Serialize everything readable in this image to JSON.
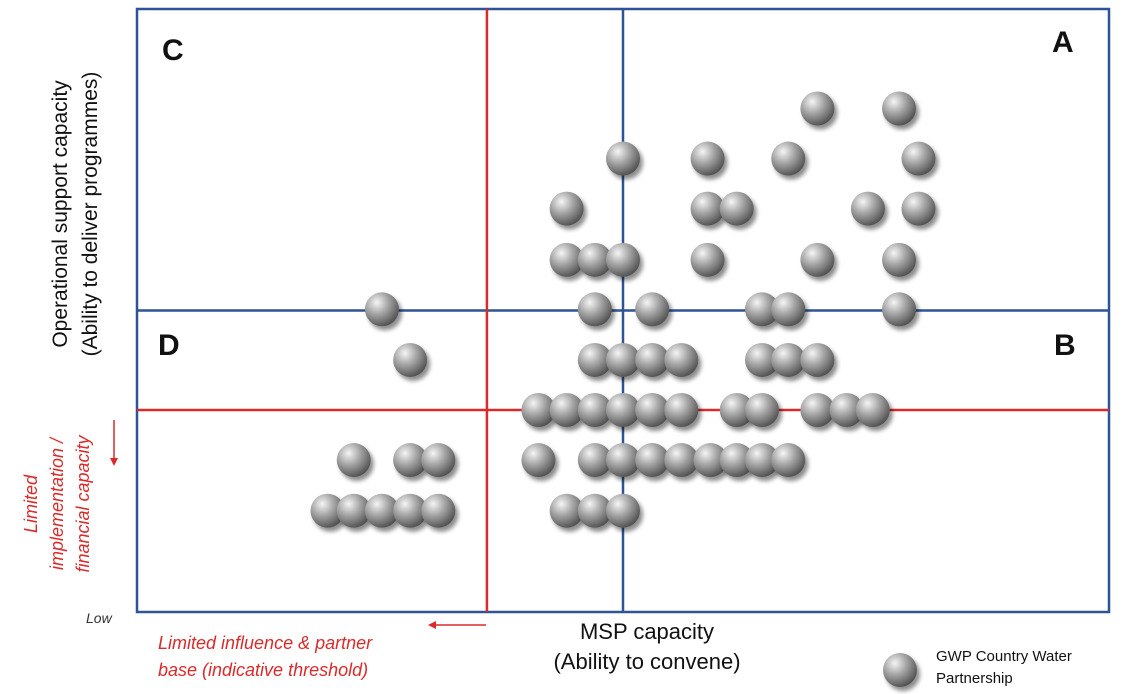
{
  "colors": {
    "frame": "#2f5496",
    "threshold": "#d92b2b",
    "bubble_light": "#f2f2f2",
    "bubble_dark": "#555555"
  },
  "quadrants": {
    "A": "A",
    "B": "B",
    "C": "C",
    "D": "D"
  },
  "axes": {
    "x_title_line1": "MSP capacity",
    "x_title_line2": "(Ability to convene)",
    "y_title_line1": "Operational support capacity",
    "y_title_line2": "(Ability to deliver programmes)",
    "x_threshold_line1": "Limited influence & partner",
    "x_threshold_line2": "base (indicative threshold)",
    "y_threshold_line1": "Limited",
    "y_threshold_line2": "implementation /",
    "y_threshold_line3": "financial capacity",
    "low_label": "Low"
  },
  "legend": {
    "icon": "grey-sphere",
    "line1": "GWP Country Water",
    "line2": "Partnership"
  },
  "chart_data": {
    "type": "scatter",
    "title": "",
    "xlabel": "MSP capacity (Ability to convene)",
    "ylabel": "Operational support capacity (Ability to deliver programmes)",
    "xlim": [
      0,
      1
    ],
    "ylim": [
      0,
      1
    ],
    "reference_lines": {
      "x_mid": 0.5,
      "y_mid": 0.5,
      "x_threshold": 0.36,
      "y_threshold": 0.335
    },
    "series": [
      {
        "points": [
          [
            0.7,
            0.835
          ],
          [
            0.784,
            0.835
          ],
          [
            0.5,
            0.752
          ],
          [
            0.587,
            0.752
          ],
          [
            0.67,
            0.752
          ],
          [
            0.804,
            0.752
          ],
          [
            0.442,
            0.669
          ],
          [
            0.587,
            0.669
          ],
          [
            0.617,
            0.669
          ],
          [
            0.752,
            0.669
          ],
          [
            0.804,
            0.669
          ],
          [
            0.442,
            0.584
          ],
          [
            0.471,
            0.584
          ],
          [
            0.5,
            0.584
          ],
          [
            0.587,
            0.584
          ],
          [
            0.7,
            0.584
          ],
          [
            0.784,
            0.584
          ],
          [
            0.252,
            0.502
          ],
          [
            0.471,
            0.502
          ],
          [
            0.53,
            0.502
          ],
          [
            0.643,
            0.502
          ],
          [
            0.67,
            0.502
          ],
          [
            0.784,
            0.502
          ],
          [
            0.281,
            0.418
          ],
          [
            0.471,
            0.418
          ],
          [
            0.5,
            0.418
          ],
          [
            0.53,
            0.418
          ],
          [
            0.56,
            0.418
          ],
          [
            0.643,
            0.418
          ],
          [
            0.67,
            0.418
          ],
          [
            0.7,
            0.418
          ],
          [
            0.413,
            0.335
          ],
          [
            0.442,
            0.335
          ],
          [
            0.471,
            0.335
          ],
          [
            0.5,
            0.335
          ],
          [
            0.53,
            0.335
          ],
          [
            0.56,
            0.335
          ],
          [
            0.617,
            0.335
          ],
          [
            0.643,
            0.335
          ],
          [
            0.7,
            0.335
          ],
          [
            0.73,
            0.335
          ],
          [
            0.757,
            0.335
          ],
          [
            0.223,
            0.252
          ],
          [
            0.281,
            0.252
          ],
          [
            0.31,
            0.252
          ],
          [
            0.413,
            0.252
          ],
          [
            0.471,
            0.252
          ],
          [
            0.5,
            0.252
          ],
          [
            0.53,
            0.252
          ],
          [
            0.56,
            0.252
          ],
          [
            0.59,
            0.252
          ],
          [
            0.617,
            0.252
          ],
          [
            0.643,
            0.252
          ],
          [
            0.67,
            0.252
          ],
          [
            0.196,
            0.168
          ],
          [
            0.223,
            0.168
          ],
          [
            0.252,
            0.168
          ],
          [
            0.281,
            0.168
          ],
          [
            0.31,
            0.168
          ],
          [
            0.442,
            0.168
          ],
          [
            0.471,
            0.168
          ],
          [
            0.5,
            0.168
          ]
        ]
      }
    ]
  }
}
